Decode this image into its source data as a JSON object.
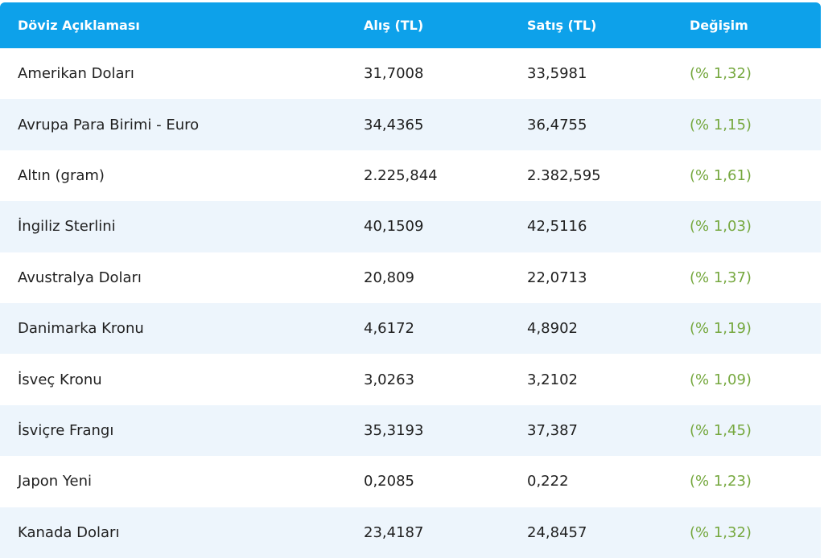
{
  "table": {
    "headers": {
      "name": "Döviz Açıklaması",
      "buy": "Alış (TL)",
      "sell": "Satış (TL)",
      "change": "Değişim"
    },
    "colors": {
      "header_bg": "#0da1ea",
      "alt_row_bg": "#edf5fc",
      "change_text": "#76a83f"
    },
    "rows": [
      {
        "name": "Amerikan Doları",
        "buy": "31,7008",
        "sell": "33,5981",
        "change": "(% 1,32)"
      },
      {
        "name": "Avrupa Para Birimi - Euro",
        "buy": "34,4365",
        "sell": "36,4755",
        "change": "(% 1,15)"
      },
      {
        "name": "Altın (gram)",
        "buy": "2.225,844",
        "sell": "2.382,595",
        "change": "(% 1,61)"
      },
      {
        "name": "İngiliz Sterlini",
        "buy": "40,1509",
        "sell": "42,5116",
        "change": "(% 1,03)"
      },
      {
        "name": "Avustralya Doları",
        "buy": "20,809",
        "sell": "22,0713",
        "change": "(% 1,37)"
      },
      {
        "name": "Danimarka Kronu",
        "buy": "4,6172",
        "sell": "4,8902",
        "change": "(% 1,19)"
      },
      {
        "name": "İsveç Kronu",
        "buy": "3,0263",
        "sell": "3,2102",
        "change": "(% 1,09)"
      },
      {
        "name": "İsviçre Frangı",
        "buy": "35,3193",
        "sell": "37,387",
        "change": "(% 1,45)"
      },
      {
        "name": "Japon Yeni",
        "buy": "0,2085",
        "sell": "0,222",
        "change": "(% 1,23)"
      },
      {
        "name": "Kanada Doları",
        "buy": "23,4187",
        "sell": "24,8457",
        "change": "(% 1,32)"
      }
    ]
  }
}
